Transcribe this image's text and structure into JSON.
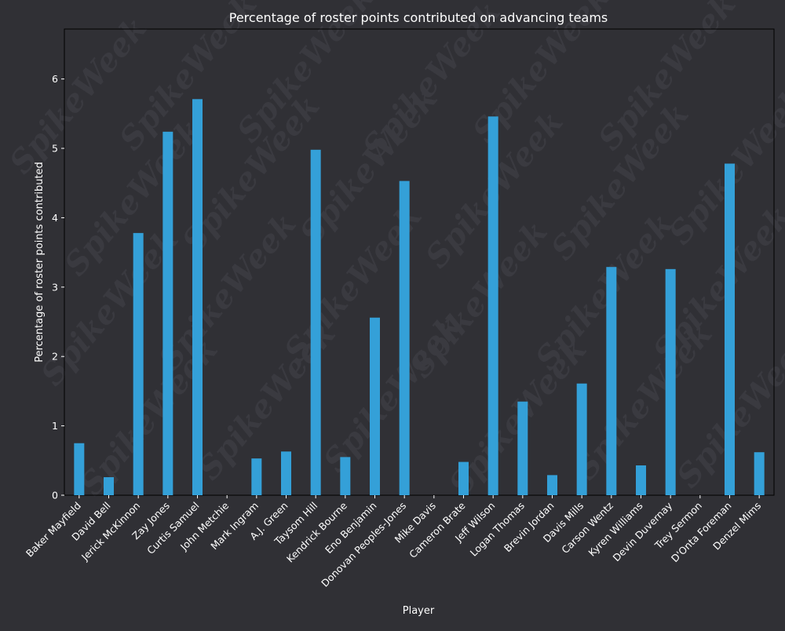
{
  "chart_data": {
    "type": "bar",
    "title": "Percentage of roster points contributed on advancing teams",
    "xlabel": "Player",
    "ylabel": "Percentage of roster points contributed",
    "ylim": [
      0,
      6.72
    ],
    "yticks": [
      0,
      1,
      2,
      3,
      4,
      5,
      6
    ],
    "grid": false,
    "bar_color": "#34a0d8",
    "background_color": "#303035",
    "watermark": "SpikeWeek",
    "categories": [
      "Baker Mayfield",
      "David Bell",
      "Jerick McKinnon",
      "Zay Jones",
      "Curtis Samuel",
      "John Metchie",
      "Mark Ingram",
      "A.J. Green",
      "Taysom Hill",
      "Kendrick Bourne",
      "Eno Benjamin",
      "Donovan Peoples-Jones",
      "Mike Davis",
      "Cameron Brate",
      "Jeff Wilson",
      "Logan Thomas",
      "Brevin Jordan",
      "Davis Mills",
      "Carson Wentz",
      "Kyren Williams",
      "Devin Duvernay",
      "Trey Sermon",
      "D'Onta Foreman",
      "Denzel Mims"
    ],
    "values": [
      0.75,
      0.26,
      3.78,
      5.24,
      5.71,
      0.0,
      0.53,
      0.63,
      4.98,
      0.55,
      2.56,
      4.53,
      0.0,
      0.48,
      5.46,
      1.35,
      0.29,
      1.61,
      3.29,
      0.43,
      3.26,
      0.0,
      4.78,
      0.62
    ]
  }
}
